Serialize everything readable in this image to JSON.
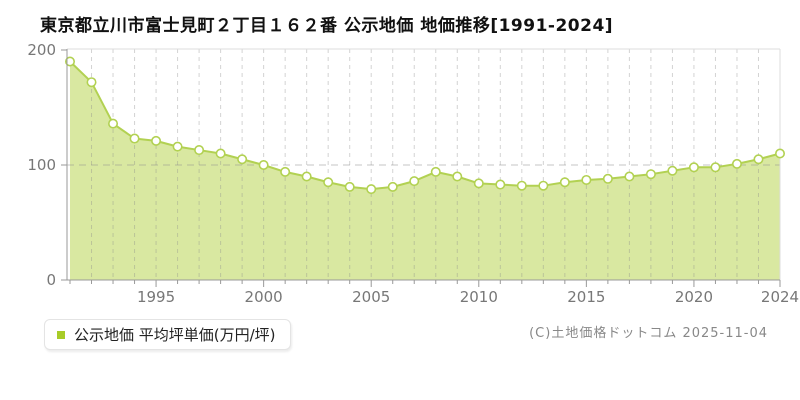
{
  "title": "東京都立川市富士見町２丁目１６２番 公示地価 地価推移[1991-2024]",
  "legend": {
    "label": "公示地価 平均坪単価(万円/坪)",
    "marker_color": "#a8cc28"
  },
  "footer": {
    "copyright": "(C)土地価格ドットコム 2025-11-04"
  },
  "chart_data": {
    "type": "area",
    "title": "東京都立川市富士見町２丁目１６２番 公示地価 地価推移[1991-2024]",
    "series_name": "公示地価 平均坪単価(万円/坪)",
    "x": [
      1991,
      1992,
      1993,
      1994,
      1995,
      1996,
      1997,
      1998,
      1999,
      2000,
      2001,
      2002,
      2003,
      2004,
      2005,
      2006,
      2007,
      2008,
      2009,
      2010,
      2011,
      2012,
      2013,
      2014,
      2015,
      2016,
      2017,
      2018,
      2019,
      2020,
      2021,
      2022,
      2023,
      2024
    ],
    "values": [
      190,
      172,
      136,
      123,
      121,
      116,
      113,
      110,
      105,
      100,
      94,
      90,
      85,
      81,
      79,
      81,
      86,
      94,
      90,
      84,
      83,
      82,
      82,
      85,
      87,
      88,
      90,
      92,
      95,
      98,
      98,
      101,
      105,
      110
    ],
    "xlabel": "",
    "ylabel": "万円/坪",
    "ylim": [
      0,
      200
    ],
    "yticks": [
      0,
      100,
      200
    ],
    "xticks": [
      1995,
      2000,
      2005,
      2010,
      2015,
      2020,
      2024
    ],
    "grid": "vertical-yearly-dashed, horizontal-at-100-dashed",
    "legend_position": "bottom-left",
    "colors": {
      "area_fill": "#d9e8a1",
      "line": "#b2d152",
      "marker_fill": "#ffffff",
      "grid": "#8c8c8c",
      "axis": "#999999",
      "frame": "#dddddd"
    }
  }
}
